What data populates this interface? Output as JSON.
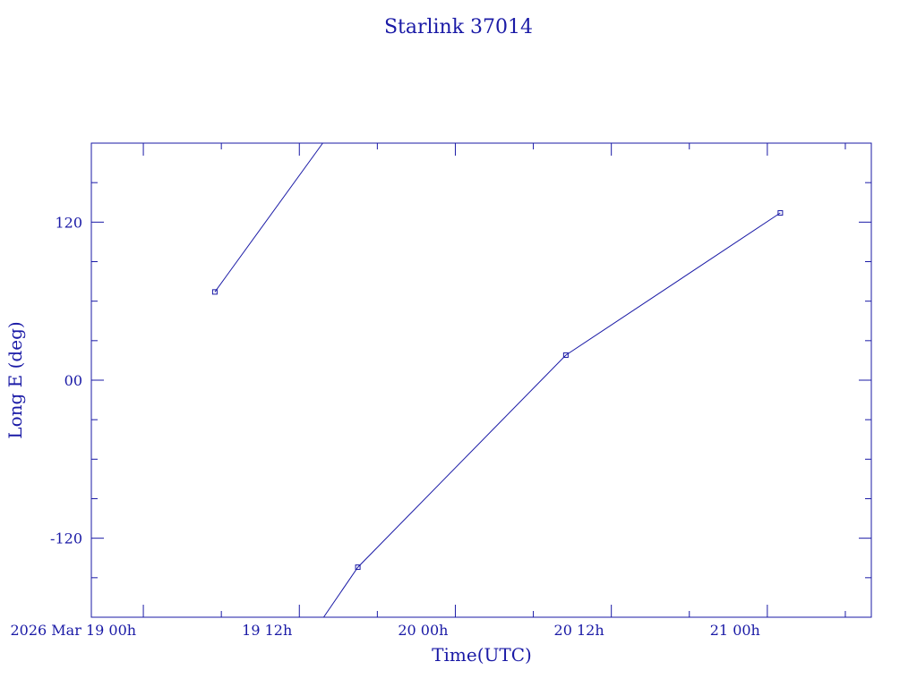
{
  "chart_data": {
    "type": "line",
    "title": "Starlink 37014",
    "xlabel": "Time(UTC)",
    "ylabel": "Long E (deg)",
    "x_range": [
      "2026-03-18T20:00",
      "2026-03-21T08:00"
    ],
    "ylim": [
      -180,
      180
    ],
    "x_tick_labels": [
      {
        "t": "2026-03-19T00:00",
        "label": "2026 Mar 19  00h"
      },
      {
        "t": "2026-03-19T12:00",
        "label": "19  12h"
      },
      {
        "t": "2026-03-20T00:00",
        "label": "20  00h"
      },
      {
        "t": "2026-03-20T12:00",
        "label": "20  12h"
      },
      {
        "t": "2026-03-21T00:00",
        "label": "21  00h"
      }
    ],
    "y_tick_labels": [
      {
        "v": 120,
        "label": "120"
      },
      {
        "v": 0,
        "label": "00"
      },
      {
        "v": -120,
        "label": "-120"
      }
    ],
    "series": [
      {
        "segments": [
          [
            {
              "t": "2026-03-19T05:30",
              "y": 67
            },
            {
              "t": "2026-03-19T13:48",
              "y": 180
            }
          ],
          [
            {
              "t": "2026-03-19T13:52",
              "y": -180
            },
            {
              "t": "2026-03-19T16:30",
              "y": -142
            },
            {
              "t": "2026-03-20T08:30",
              "y": 19
            },
            {
              "t": "2026-03-21T01:00",
              "y": 127
            }
          ]
        ],
        "markers": [
          {
            "t": "2026-03-19T05:30",
            "y": 67
          },
          {
            "t": "2026-03-19T16:30",
            "y": -142
          },
          {
            "t": "2026-03-20T08:30",
            "y": 19
          },
          {
            "t": "2026-03-21T01:00",
            "y": 127
          }
        ]
      }
    ],
    "grid": false,
    "line_color": "#1a1aa6"
  }
}
